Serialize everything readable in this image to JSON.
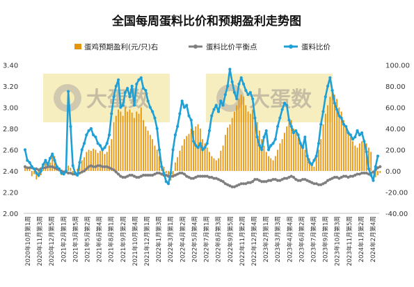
{
  "chart_data": {
    "type": "bar",
    "title": "全国每周蛋料比价和预期盈利走势图",
    "watermark": "大蛋数",
    "left_axis": {
      "ylim": [
        2.0,
        3.4
      ],
      "ticks": [
        "2.00",
        "2.20",
        "2.40",
        "2.60",
        "2.80",
        "3.00",
        "3.20",
        "3.40"
      ]
    },
    "right_axis": {
      "ylim": [
        -40,
        100
      ],
      "ticks": [
        "-40.00",
        "-20.00",
        "0.00",
        "20.00",
        "40.00",
        "60.00",
        "80.00",
        "100.00"
      ]
    },
    "x_labels": [
      "2020年10月第1周",
      "2020年11月第3周",
      "2020年12月第5周",
      "2021年2月第1周",
      "2021年3月第5周",
      "2021年5月第2周",
      "2021年6月第4周",
      "2021年8月第1周",
      "2021年9月第2周",
      "2021年10月第4周",
      "2021年12月第1周",
      "2022年1月第3周",
      "2022年3月第1周",
      "2022年4月第2周",
      "2022年5月第4周",
      "2022年7月第1周",
      "2022年8月第3周",
      "2022年9月第5周",
      "2022年11月第2周",
      "2022年12月第4周",
      "2023年2月第1周",
      "2023年3月第3周",
      "2023年4月第4周",
      "2023年6月第2周",
      "2023年7月第4周",
      "2023年9月第1周",
      "2023年10月第3周",
      "2023年11月第5周",
      "2024年1月第2周",
      "2024年2月第4周"
    ],
    "colors": {
      "profit": "#E8940A",
      "breakeven": "#7F7F7F",
      "ratio": "#1E9FD6"
    },
    "series": [
      {
        "name": "蛋鸡预期盈利(元/只)右",
        "axis": "right",
        "values": [
          4,
          3,
          2,
          -5,
          -3,
          -8,
          -6,
          -4,
          3,
          10,
          5,
          8,
          14,
          14,
          3,
          1,
          -4,
          -3,
          2,
          5,
          3,
          -2,
          0,
          2,
          6,
          10,
          13,
          18,
          20,
          19,
          21,
          20,
          17,
          19,
          20,
          16,
          18,
          24,
          30,
          46,
          52,
          58,
          56,
          52,
          60,
          56,
          58,
          55,
          50,
          56,
          54,
          60,
          48,
          42,
          38,
          34,
          30,
          24,
          20,
          14,
          9,
          4,
          -2,
          -6,
          -9,
          -4,
          8,
          13,
          19,
          24,
          30,
          33,
          35,
          40,
          38,
          42,
          44,
          40,
          30,
          26,
          22,
          18,
          14,
          12,
          10,
          12,
          19,
          24,
          34,
          41,
          44,
          50,
          56,
          62,
          68,
          72,
          70,
          62,
          56,
          54,
          58,
          52,
          46,
          38,
          30,
          24,
          18,
          14,
          12,
          10,
          14,
          20,
          26,
          30,
          36,
          42,
          46,
          48,
          40,
          36,
          32,
          26,
          24,
          20,
          16,
          12,
          8,
          4,
          14,
          20,
          30,
          44,
          54,
          62,
          70,
          76,
          72,
          68,
          60,
          56,
          48,
          42,
          38,
          32,
          28,
          24,
          22,
          26,
          28,
          30,
          26,
          22,
          18,
          -2,
          -6,
          -4,
          -2
        ]
      },
      {
        "name": "蛋料比价平衡点",
        "axis": "left",
        "values": [
          2.44,
          2.43,
          2.43,
          2.43,
          2.42,
          2.42,
          2.41,
          2.42,
          2.43,
          2.43,
          2.44,
          2.44,
          2.44,
          2.43,
          2.42,
          2.41,
          2.4,
          2.39,
          2.39,
          2.38,
          2.38,
          2.37,
          2.37,
          2.37,
          2.38,
          2.39,
          2.4,
          2.42,
          2.44,
          2.45,
          2.44,
          2.44,
          2.45,
          2.45,
          2.44,
          2.44,
          2.44,
          2.43,
          2.42,
          2.41,
          2.39,
          2.37,
          2.35,
          2.34,
          2.34,
          2.35,
          2.36,
          2.36,
          2.35,
          2.34,
          2.34,
          2.35,
          2.36,
          2.36,
          2.36,
          2.36,
          2.36,
          2.37,
          2.38,
          2.38,
          2.37,
          2.36,
          2.36,
          2.35,
          2.35,
          2.35,
          2.36,
          2.37,
          2.38,
          2.38,
          2.37,
          2.35,
          2.34,
          2.33,
          2.33,
          2.34,
          2.35,
          2.35,
          2.35,
          2.35,
          2.35,
          2.34,
          2.34,
          2.33,
          2.33,
          2.32,
          2.31,
          2.3,
          2.28,
          2.27,
          2.26,
          2.25,
          2.25,
          2.26,
          2.27,
          2.28,
          2.28,
          2.28,
          2.29,
          2.29,
          2.3,
          2.32,
          2.32,
          2.31,
          2.3,
          2.3,
          2.3,
          2.31,
          2.31,
          2.32,
          2.32,
          2.31,
          2.31,
          2.32,
          2.33,
          2.33,
          2.34,
          2.35,
          2.34,
          2.32,
          2.31,
          2.31,
          2.32,
          2.32,
          2.31,
          2.3,
          2.29,
          2.28,
          2.28,
          2.27,
          2.27,
          2.28,
          2.29,
          2.31,
          2.32,
          2.33,
          2.34,
          2.34,
          2.33,
          2.34,
          2.35,
          2.35,
          2.34,
          2.35,
          2.35,
          2.36,
          2.37,
          2.37,
          2.38,
          2.38,
          2.38,
          2.37,
          2.38,
          2.39,
          2.41,
          2.43,
          2.44
        ]
      },
      {
        "name": "蛋料比价",
        "axis": "left",
        "values": [
          2.6,
          2.5,
          2.48,
          2.44,
          2.42,
          2.38,
          2.36,
          2.4,
          2.46,
          2.5,
          2.46,
          2.52,
          2.56,
          2.5,
          2.44,
          2.42,
          2.38,
          2.37,
          2.4,
          3.15,
          2.82,
          2.45,
          2.38,
          2.36,
          2.48,
          2.6,
          2.66,
          2.74,
          2.78,
          2.8,
          2.74,
          2.72,
          2.66,
          2.64,
          2.6,
          2.62,
          2.66,
          2.74,
          2.94,
          3.1,
          3.2,
          3.26,
          3.0,
          3.02,
          3.14,
          3.18,
          3.1,
          3.2,
          3.02,
          3.22,
          3.26,
          3.28,
          3.18,
          3.16,
          3.06,
          3.0,
          2.96,
          2.9,
          2.8,
          2.6,
          2.44,
          2.38,
          2.3,
          2.28,
          2.38,
          2.6,
          2.74,
          2.82,
          2.94,
          3.06,
          3.0,
          3.02,
          2.92,
          2.88,
          2.68,
          2.64,
          2.62,
          2.66,
          2.6,
          2.62,
          2.66,
          2.78,
          2.92,
          2.98,
          3.02,
          2.96,
          3.06,
          3.02,
          3.12,
          3.2,
          3.36,
          3.24,
          3.14,
          3.08,
          3.22,
          3.28,
          3.22,
          3.16,
          3.12,
          3.14,
          3.08,
          2.9,
          2.72,
          2.64,
          2.6,
          2.72,
          2.78,
          2.6,
          2.64,
          2.66,
          2.7,
          2.82,
          2.9,
          2.98,
          3.04,
          3.02,
          2.88,
          2.82,
          2.76,
          2.78,
          2.74,
          2.66,
          2.62,
          2.72,
          2.54,
          2.48,
          2.46,
          2.5,
          2.54,
          2.66,
          2.84,
          2.96,
          3.1,
          3.2,
          3.28,
          3.16,
          3.04,
          2.98,
          2.92,
          2.9,
          2.84,
          2.82,
          2.76,
          2.74,
          2.7,
          2.72,
          2.78,
          2.74,
          2.76,
          2.68,
          2.58,
          2.42,
          2.36,
          2.31,
          2.44,
          2.54
        ]
      }
    ]
  }
}
